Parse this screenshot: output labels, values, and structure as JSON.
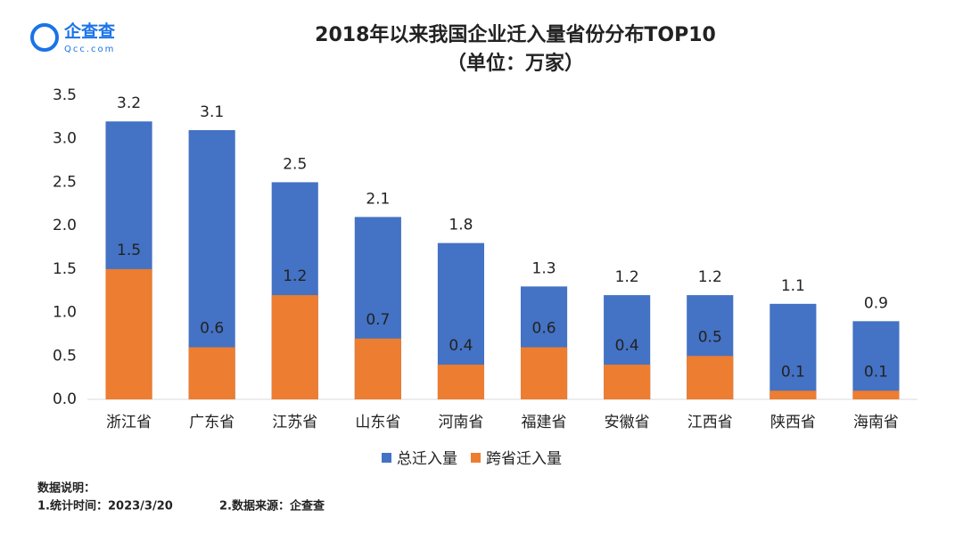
{
  "logo": {
    "name": "企查查",
    "url": "Qcc.com"
  },
  "chart_data": {
    "type": "bar",
    "barmode": "overlay",
    "title": "2018年以来我国企业迁入量省份分布TOP10",
    "subtitle": "（单位：万家）",
    "categories": [
      "浙江省",
      "广东省",
      "江苏省",
      "山东省",
      "河南省",
      "福建省",
      "安徽省",
      "江西省",
      "陕西省",
      "海南省"
    ],
    "series": [
      {
        "name": "总迁入量",
        "color": "#4472c4",
        "values": [
          3.2,
          3.1,
          2.5,
          2.1,
          1.8,
          1.3,
          1.2,
          1.2,
          1.1,
          0.9
        ]
      },
      {
        "name": "跨省迁入量",
        "color": "#ed7d31",
        "values": [
          1.5,
          0.6,
          1.2,
          0.7,
          0.4,
          0.6,
          0.4,
          0.5,
          0.1,
          0.1
        ]
      }
    ],
    "ylim": [
      0,
      3.5
    ],
    "yticks": [
      {
        "value": 0,
        "label": "0.0"
      },
      0.5,
      {
        "value": 1,
        "label": "1.0"
      },
      1.5,
      {
        "value": 2,
        "label": "2.0"
      },
      2.5,
      {
        "value": 3,
        "label": "3.0"
      },
      3.5
    ],
    "grid": false,
    "legend": "bottom"
  },
  "notes": {
    "heading": "数据说明：",
    "items": [
      "1.统计时间：2023/3/20",
      "2.数据来源：企查查"
    ]
  }
}
